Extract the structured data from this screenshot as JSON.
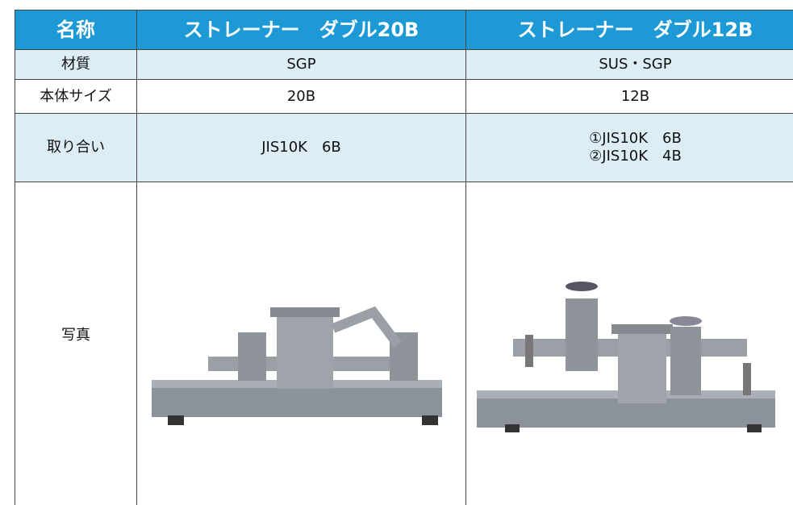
{
  "table": {
    "header": [
      "名称",
      "ストレーナー　ダブル20B",
      "ストレーナー　ダブル12B"
    ],
    "rows": [
      [
        "材質",
        "SGP",
        "SUS・SGP"
      ],
      [
        "本体サイズ",
        "20B",
        "12B"
      ],
      [
        "取り合い",
        "JIS10K　6B",
        [
          "①JIS10K　6B",
          "②JIS10K　4B"
        ]
      ],
      [
        "写真"
      ]
    ]
  }
}
